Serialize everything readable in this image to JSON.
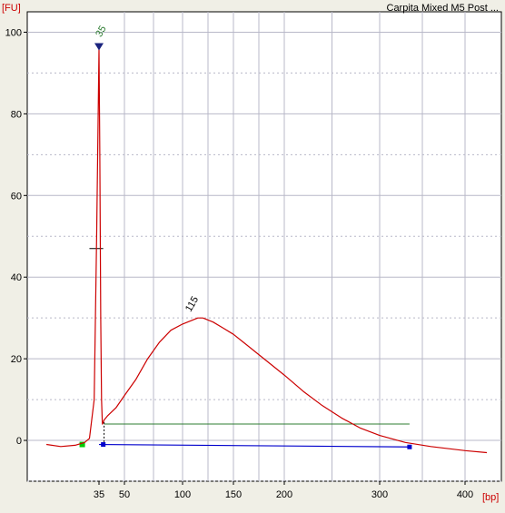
{
  "chart_data": {
    "type": "line",
    "title": "Carpita Mixed M5 Post ...",
    "ylabel": "[FU]",
    "xlabel": "[bp]",
    "ylim": [
      -10,
      105
    ],
    "grid": true,
    "y_ticks": [
      0,
      20,
      40,
      60,
      80,
      100
    ],
    "x_ticks": [
      "35",
      "50",
      "100",
      "150",
      "200",
      "300",
      "400"
    ],
    "peak_labels": [
      {
        "label": "35",
        "x": 35,
        "y": 96,
        "color": "#2e7d32"
      },
      {
        "label": "115",
        "x": 115,
        "y": 30,
        "color": "#000000"
      }
    ],
    "series": [
      {
        "color": "#cc0000",
        "x": [
          24,
          27,
          30,
          32,
          33,
          34,
          34.5,
          35,
          35.5,
          36,
          36.5,
          37,
          38,
          40,
          45,
          50,
          60,
          70,
          80,
          90,
          100,
          110,
          115,
          120,
          130,
          140,
          150,
          160,
          170,
          180,
          200,
          220,
          240,
          260,
          280,
          300,
          330,
          360,
          400,
          430
        ],
        "y": [
          -1,
          -1.5,
          -1.2,
          -0.5,
          0.5,
          10,
          50,
          96,
          70,
          30,
          10,
          4,
          5,
          6,
          8,
          11,
          15,
          20,
          24,
          27,
          28.5,
          29.5,
          30,
          30,
          29,
          27.5,
          26,
          24,
          22,
          20,
          16,
          12,
          8.5,
          5.5,
          3,
          1.2,
          -0.5,
          -1.5,
          -2.5,
          -3
        ]
      }
    ]
  }
}
